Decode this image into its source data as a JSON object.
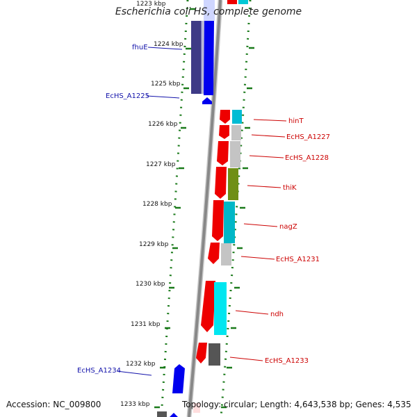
{
  "title": "Escherichia coli HS, complete genome",
  "footer": {
    "accession": "Accession: NC_009800",
    "summary": "Topology: circular; Length: 4,643,538 bp; Genes: 4,535"
  },
  "colors": {
    "backbone": "#888888",
    "tick": "#1a7a1a",
    "forward_label": "#1111aa",
    "reverse_label": "#cc0000"
  },
  "scale_ticks": [
    "1223 kbp",
    "1224 kbp",
    "1225 kbp",
    "1226 kbp",
    "1227 kbp",
    "1228 kbp",
    "1229 kbp",
    "1230 kbp",
    "1231 kbp",
    "1232 kbp",
    "1233 kbp"
  ],
  "gene_labels": [
    {
      "text": "fhuE",
      "strand": "forward"
    },
    {
      "text": "EcHS_A1225",
      "strand": "forward"
    },
    {
      "text": "hinT",
      "strand": "reverse"
    },
    {
      "text": "EcHS_A1227",
      "strand": "reverse"
    },
    {
      "text": "EcHS_A1228",
      "strand": "reverse"
    },
    {
      "text": "thiK",
      "strand": "reverse"
    },
    {
      "text": "nagZ",
      "strand": "reverse"
    },
    {
      "text": "EcHS_A1231",
      "strand": "reverse"
    },
    {
      "text": "ndh",
      "strand": "reverse"
    },
    {
      "text": "EcHS_A1233",
      "strand": "reverse"
    },
    {
      "text": "EcHS_A1234",
      "strand": "forward"
    }
  ]
}
